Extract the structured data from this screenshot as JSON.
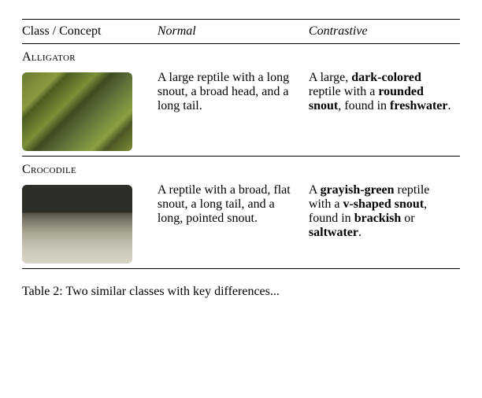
{
  "columns": {
    "class": "Class / Concept",
    "normal": "Normal",
    "contrastive": "Contrastive"
  },
  "rows": [
    {
      "label": "Alligator",
      "normal_parts": [
        "A large reptile with a long snout, a broad head, and a long tail."
      ],
      "contrastive_parts": [
        {
          "t": "A large, "
        },
        {
          "t": "dark-colored",
          "b": true
        },
        {
          "t": " reptile with a "
        },
        {
          "t": "rounded snout",
          "b": true
        },
        {
          "t": ", found in "
        },
        {
          "t": "freshwater",
          "b": true
        },
        {
          "t": "."
        }
      ],
      "image_css": "background: linear-gradient(135deg,#6a7a2f 0%,#8a9a3f 20%,#4c5c20 25%,#7d8f38 40%,#3f4a1e 48%,#5f703a 60%,#8aa040 78%,#4a5524 85%,#7b8e35 100%);"
    },
    {
      "label": "Crocodile",
      "normal_parts": [
        "A reptile with a broad, flat snout, a long tail, and a long, pointed snout."
      ],
      "contrastive_parts": [
        {
          "t": "A "
        },
        {
          "t": "grayish-green",
          "b": true
        },
        {
          "t": " reptile with a "
        },
        {
          "t": "v-shaped snout",
          "b": true
        },
        {
          "t": ", found in "
        },
        {
          "t": "brackish",
          "b": true
        },
        {
          "t": " or "
        },
        {
          "t": "saltwater",
          "b": true
        },
        {
          "t": "."
        }
      ],
      "image_css": "background: linear-gradient(to bottom,#2b2f28 0%,#2b2f28 35%,#565246 36%,#7a7868 45%,#a8a492 60%,#c9c6b6 80%,#d7d4c6 100%);"
    }
  ],
  "caption_prefix": "Table 2: ",
  "caption_rest": "Two similar classes with key differences..."
}
